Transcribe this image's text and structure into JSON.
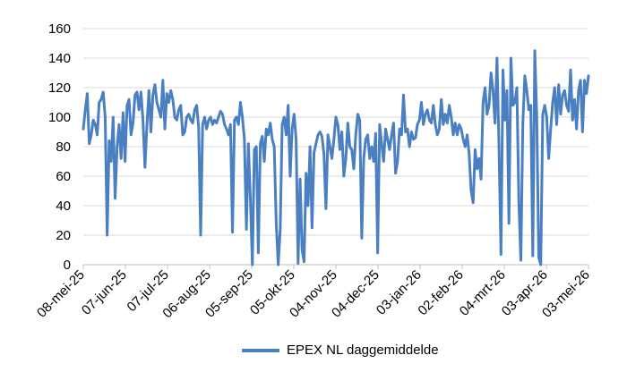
{
  "chart_data": {
    "type": "line",
    "title": "",
    "xlabel": "",
    "ylabel": "",
    "ylim": [
      0,
      160
    ],
    "y_ticks": [
      "0",
      "20",
      "40",
      "60",
      "80",
      "100",
      "120",
      "140",
      "160"
    ],
    "x_ticks": [
      "08-mei-25",
      "07-jun-25",
      "07-jul-25",
      "06-aug-25",
      "05-sep-25",
      "05-okt-25",
      "04-nov-25",
      "04-dec-25",
      "03-jan-26",
      "02-feb-26",
      "04-mrt-26",
      "03-apr-26",
      "03-mei-26"
    ],
    "grid": "horizontal",
    "legend_position": "bottom",
    "series": [
      {
        "name": "EPEX NL daggemiddelde",
        "color": "#4a7fc1",
        "x_start": "08-mei-25",
        "x_step": "1 dag",
        "values": [
          92,
          105,
          116,
          82,
          88,
          98,
          95,
          88,
          110,
          112,
          117,
          100,
          20,
          84,
          70,
          100,
          45,
          80,
          95,
          72,
          103,
          70,
          108,
          112,
          88,
          96,
          115,
          117,
          105,
          117,
          98,
          66,
          95,
          118,
          90,
          115,
          122,
          110,
          105,
          100,
          125,
          92,
          116,
          110,
          118,
          112,
          100,
          98,
          105,
          108,
          88,
          90,
          100,
          102,
          98,
          96,
          105,
          108,
          93,
          20,
          95,
          100,
          92,
          98,
          100,
          95,
          98,
          96,
          100,
          104,
          102,
          95,
          92,
          88,
          95,
          22,
          98,
          100,
          95,
          110,
          100,
          85,
          24,
          82,
          45,
          0,
          78,
          80,
          8,
          82,
          87,
          70,
          92,
          88,
          96,
          85,
          80,
          28,
          0,
          24,
          95,
          100,
          88,
          108,
          60,
          92,
          102,
          85,
          1,
          58,
          10,
          2,
          62,
          40,
          80,
          25,
          76,
          82,
          88,
          90,
          87,
          75,
          38,
          88,
          80,
          72,
          85,
          100,
          95,
          78,
          90,
          60,
          72,
          96,
          80,
          78,
          65,
          88,
          102,
          98,
          18,
          72,
          85,
          88,
          72,
          80,
          70,
          89,
          8,
          95,
          82,
          70,
          92,
          85,
          78,
          88,
          96,
          62,
          70,
          92,
          88,
          115,
          90,
          92,
          80,
          90,
          85,
          86,
          95,
          98,
          110,
          95,
          102,
          105,
          98,
          96,
          108,
          95,
          88,
          92,
          112,
          95,
          102,
          96,
          108,
          100,
          88,
          96,
          88,
          95,
          92,
          85,
          80,
          88,
          75,
          50,
          42,
          78,
          65,
          72,
          58,
          110,
          120,
          102,
          108,
          130,
          118,
          96,
          140,
          80,
          7,
          132,
          98,
          118,
          28,
          140,
          108,
          110,
          120,
          42,
          3,
          96,
          128,
          118,
          105,
          108,
          6,
          145,
          100,
          5,
          0,
          102,
          108,
          100,
          72,
          92,
          110,
          120,
          95,
          122,
          102,
          115,
          118,
          108,
          104,
          132,
          98,
          112,
          92,
          118,
          125,
          90,
          125,
          116,
          128
        ]
      }
    ]
  }
}
